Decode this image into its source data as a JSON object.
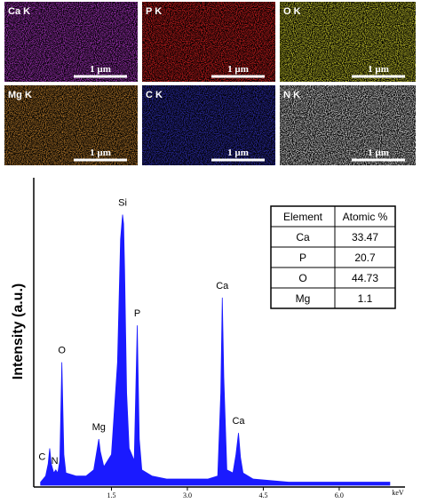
{
  "maps": {
    "scale_bar": "1 µm",
    "tiles": [
      {
        "label": "Ca K",
        "color": "#9a30b0"
      },
      {
        "label": "P K",
        "color": "#c01c1c"
      },
      {
        "label": "O K",
        "color": "#b4b428"
      },
      {
        "label": "Mg K",
        "color": "#a87028"
      },
      {
        "label": "C K",
        "color": "#2a2aa0"
      },
      {
        "label": "N K",
        "color": "#c8c8c8"
      }
    ]
  },
  "chart_data": {
    "type": "area",
    "y_label": "Intensity (a.u.)",
    "x_unit_label": "keV",
    "color": "#1a1aff",
    "x": [
      0.1,
      0.2,
      0.25,
      0.28,
      0.31,
      0.36,
      0.4,
      0.44,
      0.48,
      0.52,
      0.56,
      0.6,
      0.8,
      1.0,
      1.15,
      1.22,
      1.25,
      1.28,
      1.35,
      1.5,
      1.62,
      1.68,
      1.72,
      1.74,
      1.76,
      1.8,
      1.85,
      1.95,
      2.01,
      2.05,
      2.1,
      2.3,
      2.6,
      3.0,
      3.4,
      3.6,
      3.66,
      3.69,
      3.72,
      3.78,
      3.9,
      3.96,
      4.01,
      4.05,
      4.1,
      4.3,
      5.0,
      6.0,
      7.0
    ],
    "values": [
      1,
      3,
      7,
      12,
      7,
      4,
      5,
      4,
      8,
      40,
      10,
      4,
      3,
      3,
      5,
      12,
      15,
      11,
      6,
      10,
      40,
      80,
      88,
      85,
      70,
      30,
      12,
      8,
      52,
      15,
      5,
      3,
      2,
      2,
      2,
      3,
      30,
      61,
      35,
      5,
      4,
      10,
      17,
      9,
      4,
      2,
      1,
      1,
      1
    ],
    "xlim": [
      0,
      7.3
    ],
    "ylim": [
      0,
      100
    ],
    "xticks": [
      1.5,
      {
        "value": 3,
        "label": "3.0"
      },
      4.5,
      {
        "value": 6,
        "label": "6.0"
      }
    ],
    "annotations": [
      {
        "text": "C",
        "x": 0.2
      },
      {
        "text": "N",
        "x": 0.38
      },
      {
        "text": "O",
        "x": 0.52
      },
      {
        "text": "Mg",
        "x": 1.25
      },
      {
        "text": "Si",
        "x": 1.72
      },
      {
        "text": "P",
        "x": 2.01
      },
      {
        "text": "Ca",
        "x": 3.69
      },
      {
        "text": "Ca",
        "x": 4.01
      }
    ]
  },
  "table": {
    "header": [
      "Element",
      "Atomic %"
    ],
    "rows": [
      [
        "Ca",
        "33.47"
      ],
      [
        "P",
        "20.7"
      ],
      [
        "O",
        "44.73"
      ],
      [
        "Mg",
        "1.1"
      ]
    ]
  }
}
